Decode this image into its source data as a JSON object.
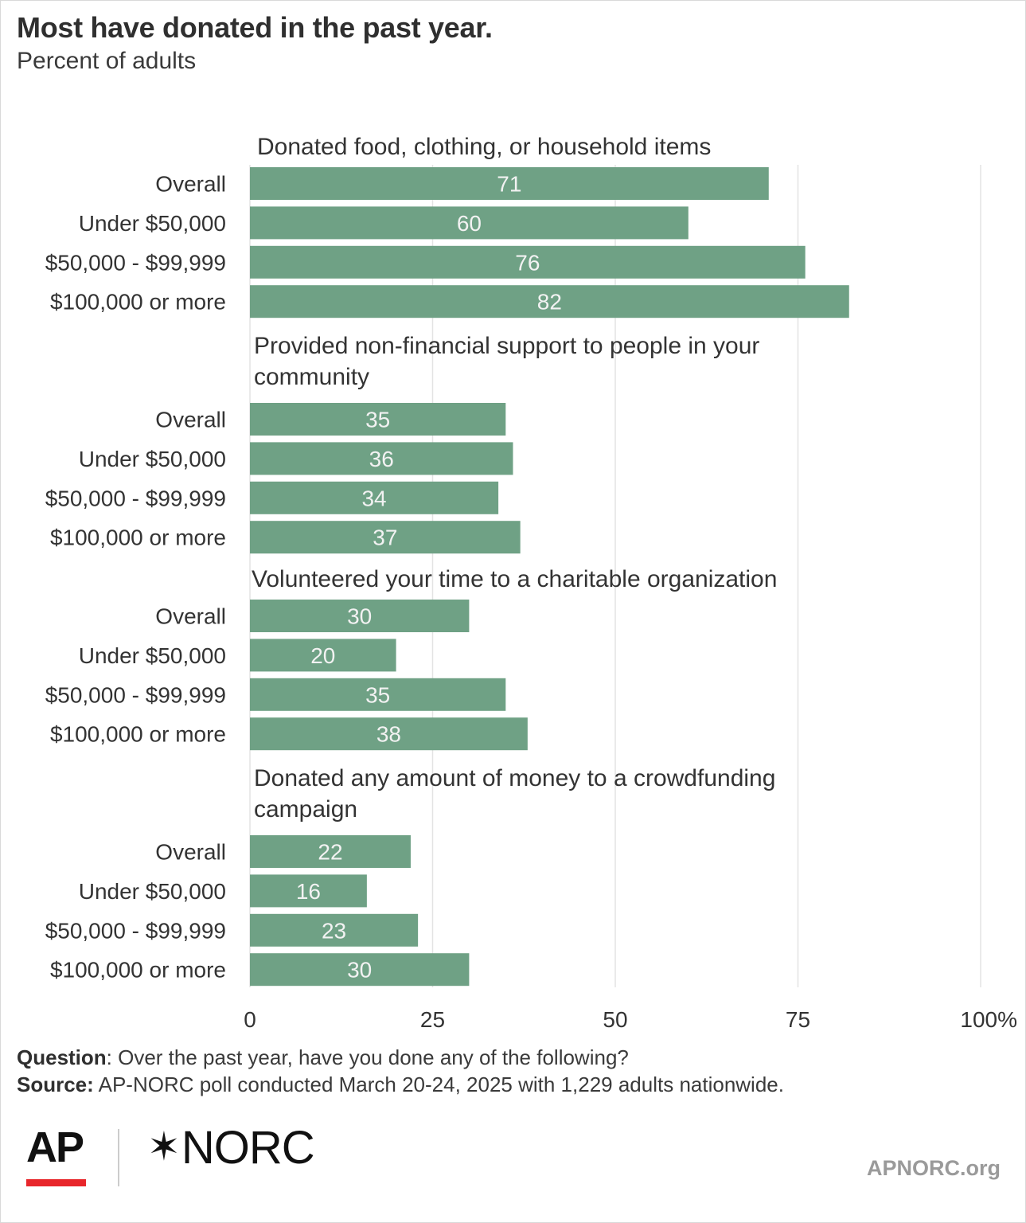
{
  "header": {
    "title": "Most have donated in the past year.",
    "subtitle": "Percent of adults"
  },
  "chart_data": {
    "type": "bar",
    "orientation": "horizontal",
    "xlim": [
      0,
      100
    ],
    "x_ticks": [
      "0",
      "25",
      "50",
      "75",
      "100%"
    ],
    "x_tick_values": [
      0,
      25,
      50,
      75,
      100
    ],
    "grid": true,
    "bar_color": "#6fa185",
    "groups": [
      {
        "title_lines": [
          "Donated food, clothing, or household items"
        ],
        "categories": [
          "Overall",
          "Under $50,000",
          "$50,000 - $99,999",
          "$100,000 or more"
        ],
        "values": [
          71,
          60,
          76,
          82
        ]
      },
      {
        "title_lines": [
          "Provided non-financial support to people in your",
          "community"
        ],
        "categories": [
          "Overall",
          "Under $50,000",
          "$50,000 - $99,999",
          "$100,000 or more"
        ],
        "values": [
          35,
          36,
          34,
          37
        ]
      },
      {
        "title_lines": [
          "Volunteered your time to a charitable organization"
        ],
        "categories": [
          "Overall",
          "Under $50,000",
          "$50,000 - $99,999",
          "$100,000 or more"
        ],
        "values": [
          30,
          20,
          35,
          38
        ]
      },
      {
        "title_lines": [
          "Donated any amount of money to a crowdfunding",
          "campaign"
        ],
        "categories": [
          "Overall",
          "Under $50,000",
          "$50,000 - $99,999",
          "$100,000 or more"
        ],
        "values": [
          22,
          16,
          23,
          30
        ]
      }
    ]
  },
  "footer": {
    "question_label": "Question",
    "question_text": ": Over the past year, have you done any of the following?",
    "source_label": "Source:",
    "source_text": " AP-NORC poll conducted March 20-24, 2025 with 1,229 adults nationwide.",
    "logo_ap": "AP",
    "logo_norc": "NORC",
    "website": "APNORC.org"
  }
}
